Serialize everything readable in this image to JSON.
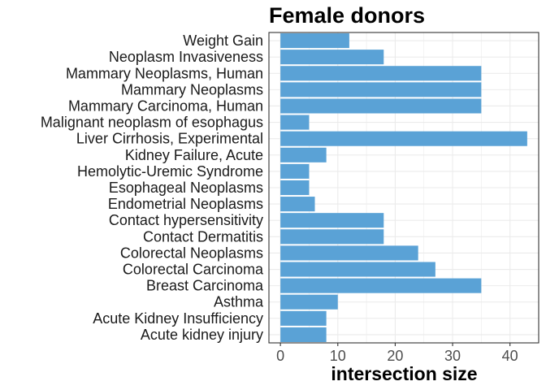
{
  "chart_data": {
    "type": "bar",
    "orientation": "horizontal",
    "title": "Female donors",
    "xlabel": "intersection size",
    "ylabel": "",
    "categories": [
      "Weight Gain",
      "Neoplasm Invasiveness",
      "Mammary Neoplasms, Human",
      "Mammary Neoplasms",
      "Mammary Carcinoma, Human",
      "Malignant neoplasm of esophagus",
      "Liver Cirrhosis, Experimental",
      "Kidney Failure, Acute",
      "Hemolytic-Uremic Syndrome",
      "Esophageal Neoplasms",
      "Endometrial Neoplasms",
      "Contact hypersensitivity",
      "Contact Dermatitis",
      "Colorectal Neoplasms",
      "Colorectal Carcinoma",
      "Breast Carcinoma",
      "Asthma",
      "Acute Kidney Insufficiency",
      "Acute kidney injury"
    ],
    "values": [
      12,
      18,
      35,
      35,
      35,
      5,
      43,
      8,
      5,
      5,
      6,
      18,
      18,
      24,
      27,
      35,
      10,
      8,
      8
    ],
    "xlim": [
      -2,
      45
    ],
    "xticks": [
      0,
      10,
      20,
      30,
      40
    ],
    "grid": true,
    "legend": "none",
    "bar_color": "#5aa2d6",
    "grid_color": "#ebebeb",
    "border_color": "#333333"
  }
}
